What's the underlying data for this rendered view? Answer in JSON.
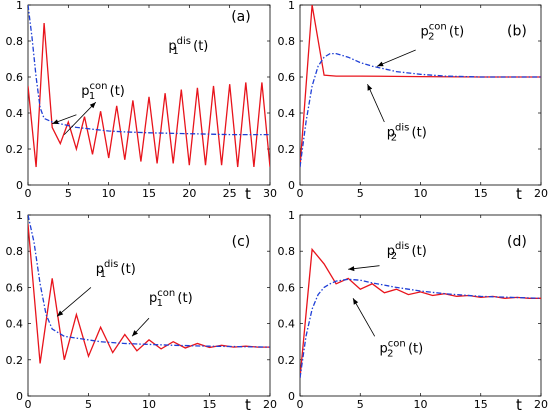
{
  "chart_data": [
    {
      "type": "line",
      "panel": "(a)",
      "xlabel": "t",
      "xlim": [
        0,
        30
      ],
      "ylim": [
        0,
        1
      ],
      "xticks": [
        0,
        5,
        10,
        15,
        20,
        25,
        30
      ],
      "yticks": [
        0,
        0.2,
        0.4,
        0.6,
        0.8,
        1
      ],
      "series": [
        {
          "name": "p_1^dis(t)",
          "style": "solid",
          "color": "#e8141c",
          "x": [
            0,
            1,
            2,
            3,
            4,
            5,
            6,
            7,
            8,
            9,
            10,
            11,
            12,
            13,
            14,
            15,
            16,
            17,
            18,
            19,
            20,
            21,
            22,
            23,
            24,
            25,
            26,
            27,
            28,
            29,
            30
          ],
          "y": [
            0.55,
            0.1,
            0.9,
            0.32,
            0.23,
            0.35,
            0.2,
            0.38,
            0.17,
            0.41,
            0.15,
            0.44,
            0.14,
            0.47,
            0.13,
            0.49,
            0.12,
            0.51,
            0.12,
            0.53,
            0.11,
            0.54,
            0.11,
            0.55,
            0.11,
            0.56,
            0.1,
            0.57,
            0.1,
            0.57,
            0.1
          ]
        },
        {
          "name": "p_1^con(t)",
          "style": "dash-dot",
          "color": "#1f3fd6",
          "x": [
            0,
            0.5,
            1,
            1.5,
            2,
            3,
            4,
            5,
            6,
            8,
            10,
            12,
            15,
            20,
            25,
            30
          ],
          "y": [
            1.0,
            0.82,
            0.6,
            0.43,
            0.37,
            0.35,
            0.34,
            0.33,
            0.32,
            0.31,
            0.3,
            0.295,
            0.29,
            0.285,
            0.28,
            0.28
          ]
        }
      ],
      "annotations": [
        {
          "base": "p",
          "sub": "1",
          "sup": "dis",
          "tail": "(t)",
          "series": 0
        },
        {
          "base": "p",
          "sub": "1",
          "sup": "con",
          "tail": "(t)",
          "series": 1
        }
      ]
    },
    {
      "type": "line",
      "panel": "(b)",
      "xlabel": "t",
      "xlim": [
        0,
        20
      ],
      "ylim": [
        0,
        1
      ],
      "xticks": [
        0,
        5,
        10,
        15,
        20
      ],
      "yticks": [
        0,
        0.2,
        0.4,
        0.6,
        0.8,
        1
      ],
      "series": [
        {
          "name": "p_2^dis(t)",
          "style": "solid",
          "color": "#e8141c",
          "x": [
            0,
            1,
            2,
            3,
            5,
            10,
            15,
            20
          ],
          "y": [
            0.1,
            1.0,
            0.61,
            0.605,
            0.605,
            0.602,
            0.6,
            0.6
          ]
        },
        {
          "name": "p_2^con(t)",
          "style": "dash-dot",
          "color": "#1f3fd6",
          "x": [
            0,
            0.5,
            1,
            1.5,
            2,
            2.5,
            3,
            4,
            5,
            6,
            8,
            10,
            12,
            15,
            20
          ],
          "y": [
            0.1,
            0.35,
            0.55,
            0.66,
            0.71,
            0.73,
            0.73,
            0.71,
            0.68,
            0.66,
            0.63,
            0.615,
            0.605,
            0.6,
            0.6
          ]
        }
      ],
      "annotations": [
        {
          "base": "p",
          "sub": "2",
          "sup": "con",
          "tail": "(t)",
          "series": 1
        },
        {
          "base": "p",
          "sub": "2",
          "sup": "dis",
          "tail": "(t)",
          "series": 0
        }
      ]
    },
    {
      "type": "line",
      "panel": "(c)",
      "xlabel": "t",
      "xlim": [
        0,
        20
      ],
      "ylim": [
        0,
        1
      ],
      "xticks": [
        0,
        5,
        10,
        15,
        20
      ],
      "yticks": [
        0,
        0.2,
        0.4,
        0.6,
        0.8,
        1
      ],
      "series": [
        {
          "name": "p_1^dis(t)",
          "style": "solid",
          "color": "#e8141c",
          "x": [
            0,
            1,
            2,
            3,
            4,
            5,
            6,
            7,
            8,
            9,
            10,
            11,
            12,
            13,
            14,
            15,
            16,
            17,
            18,
            19,
            20
          ],
          "y": [
            0.95,
            0.18,
            0.65,
            0.2,
            0.45,
            0.22,
            0.38,
            0.24,
            0.34,
            0.25,
            0.31,
            0.26,
            0.3,
            0.265,
            0.29,
            0.268,
            0.28,
            0.27,
            0.275,
            0.27,
            0.27
          ]
        },
        {
          "name": "p_1^con(t)",
          "style": "dash-dot",
          "color": "#1f3fd6",
          "x": [
            0,
            0.5,
            1,
            1.5,
            2,
            3,
            4,
            5,
            6,
            8,
            10,
            12,
            15,
            20
          ],
          "y": [
            1.0,
            0.85,
            0.62,
            0.45,
            0.37,
            0.33,
            0.32,
            0.31,
            0.3,
            0.29,
            0.285,
            0.28,
            0.275,
            0.27
          ]
        }
      ],
      "annotations": [
        {
          "base": "p",
          "sub": "1",
          "sup": "dis",
          "tail": "(t)",
          "series": 0
        },
        {
          "base": "p",
          "sub": "1",
          "sup": "con",
          "tail": "(t)",
          "series": 1
        }
      ]
    },
    {
      "type": "line",
      "panel": "(d)",
      "xlabel": "t",
      "xlim": [
        0,
        20
      ],
      "ylim": [
        0,
        1
      ],
      "xticks": [
        0,
        5,
        10,
        15,
        20
      ],
      "yticks": [
        0,
        0.2,
        0.4,
        0.6,
        0.8,
        1
      ],
      "series": [
        {
          "name": "p_2^dis(t)",
          "style": "solid",
          "color": "#e8141c",
          "x": [
            0,
            1,
            2,
            3,
            4,
            5,
            6,
            7,
            8,
            9,
            10,
            11,
            12,
            13,
            14,
            15,
            16,
            17,
            18,
            19,
            20
          ],
          "y": [
            0.1,
            0.81,
            0.73,
            0.62,
            0.65,
            0.59,
            0.62,
            0.57,
            0.59,
            0.56,
            0.575,
            0.555,
            0.565,
            0.55,
            0.555,
            0.545,
            0.55,
            0.54,
            0.545,
            0.54,
            0.54
          ]
        },
        {
          "name": "p_2^con(t)",
          "style": "dash-dot",
          "color": "#1f3fd6",
          "x": [
            0,
            0.5,
            1,
            1.5,
            2,
            2.5,
            3,
            4,
            5,
            6,
            8,
            10,
            12,
            15,
            20
          ],
          "y": [
            0.1,
            0.33,
            0.48,
            0.56,
            0.6,
            0.62,
            0.635,
            0.645,
            0.64,
            0.625,
            0.6,
            0.58,
            0.565,
            0.55,
            0.54
          ]
        }
      ],
      "annotations": [
        {
          "base": "p",
          "sub": "2",
          "sup": "dis",
          "tail": "(t)",
          "series": 0
        },
        {
          "base": "p",
          "sub": "2",
          "sup": "con",
          "tail": "(t)",
          "series": 1
        }
      ]
    }
  ]
}
